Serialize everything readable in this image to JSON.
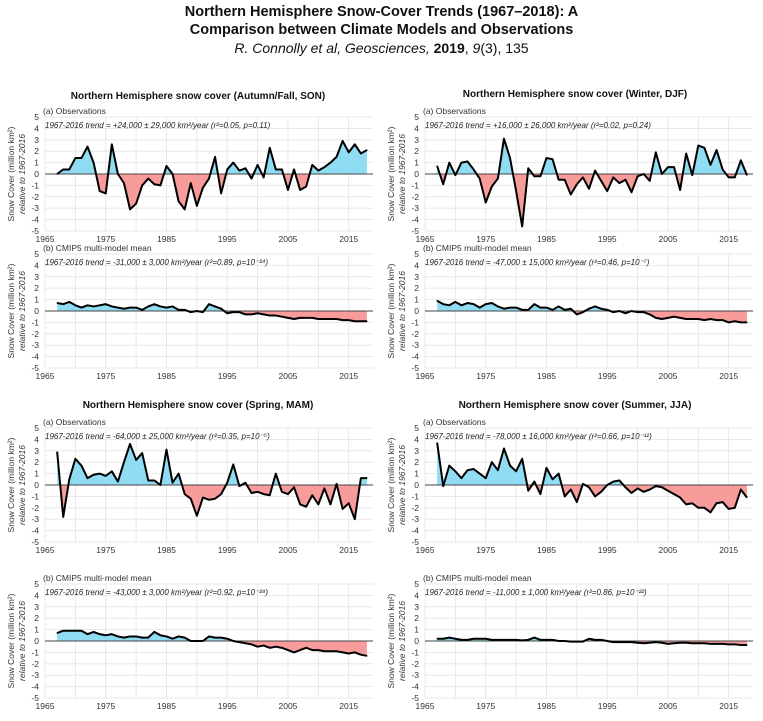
{
  "title": {
    "line1": "Northern Hemisphere Snow-Cover Trends (1967–2018): A",
    "line2": "Comparison between Climate Models and Observations",
    "cite_authors": "R. Connolly et al, Geosciences,",
    "cite_year": "2019",
    "cite_sep": ",",
    "cite_volume": "9",
    "cite_rest": "(3), 135"
  },
  "colors": {
    "positive": "#8fdcf3",
    "negative": "#f79b9b",
    "line": "#000000",
    "grid": "#e3e3e3"
  },
  "chart_data": [
    {
      "type": "area",
      "season": "Northern Hemisphere snow cover (Autumn/Fall, SON)",
      "panel": "(a) Observations",
      "trend": "1967-2016 trend = +24,000 ± 29,000 km²/year (r²=0.05, p=0.11)",
      "ylabel1": "Snow Cover (million km²)",
      "ylabel2": "relative to 1967-2016",
      "ylim": [
        -5,
        5
      ],
      "xlim": [
        1965,
        2019
      ],
      "xticks": [
        "1965",
        "1975",
        "1985",
        "1995",
        "2005",
        "2015"
      ],
      "yticks": [
        "5",
        "4",
        "3",
        "2",
        "1",
        "0",
        "-1",
        "-2",
        "-3",
        "-4",
        "-5"
      ],
      "x_start": 1967,
      "values": [
        0,
        0.4,
        0.4,
        1.4,
        1.4,
        2.4,
        1.0,
        -1.5,
        -1.7,
        2.6,
        0,
        -0.8,
        -3.1,
        -2.6,
        -1.0,
        -0.4,
        -0.9,
        -1.0,
        0.7,
        0,
        -2.4,
        -3.1,
        -0.8,
        -2.8,
        -1.2,
        -0.4,
        1.5,
        -1.7,
        0.4,
        1.0,
        0.3,
        0.5,
        -0.4,
        0.8,
        -0.3,
        2.3,
        0.4,
        0.4,
        -1.4,
        0.4,
        -1.4,
        -1.1,
        0.8,
        0.3,
        0.6,
        1.0,
        1.5,
        2.9,
        1.9,
        2.6,
        1.8,
        2.1
      ]
    },
    {
      "type": "area",
      "season": "",
      "panel": "(b) CMIP5 multi-model mean",
      "trend": "1967-2016 trend = -31,000 ± 3,000 km²/year (r²=0.89, p=10⁻²⁴)",
      "ylabel1": "Snow Cover (million km²)",
      "ylabel2": "relative to 1967-2016",
      "ylim": [
        -5,
        5
      ],
      "xlim": [
        1965,
        2019
      ],
      "xticks": [
        "1965",
        "1975",
        "1985",
        "1995",
        "2005",
        "2015"
      ],
      "yticks": [
        "5",
        "4",
        "3",
        "2",
        "1",
        "0",
        "-1",
        "-2",
        "-3",
        "-4",
        "-5"
      ],
      "x_start": 1967,
      "values": [
        0.7,
        0.6,
        0.8,
        0.5,
        0.3,
        0.5,
        0.4,
        0.5,
        0.6,
        0.4,
        0.3,
        0.2,
        0.3,
        0.3,
        0.1,
        0.4,
        0.6,
        0.4,
        0.3,
        0.4,
        0.1,
        0.1,
        -0.1,
        0,
        -0.1,
        0.6,
        0.4,
        0.2,
        -0.2,
        -0.1,
        -0.1,
        -0.3,
        -0.3,
        -0.2,
        -0.3,
        -0.4,
        -0.4,
        -0.5,
        -0.6,
        -0.7,
        -0.6,
        -0.6,
        -0.6,
        -0.7,
        -0.7,
        -0.7,
        -0.7,
        -0.8,
        -0.8,
        -0.9,
        -0.9,
        -0.9
      ]
    },
    {
      "type": "area",
      "season": "Northern Hemisphere snow cover (Winter, DJF)",
      "panel": "(a) Observations",
      "trend": "1967-2016 trend = +16,000 ± 26,000 km²/year (r²=0.02, p=0.24)",
      "ylabel1": "Snow Cover (million km²)",
      "ylabel2": "relative to 1967-2016",
      "ylim": [
        -5,
        5
      ],
      "xlim": [
        1965,
        2019
      ],
      "xticks": [
        "1965",
        "1975",
        "1985",
        "1995",
        "2005",
        "2015"
      ],
      "yticks": [
        "5",
        "4",
        "3",
        "2",
        "1",
        "0",
        "-1",
        "-2",
        "-3",
        "-4",
        "-5"
      ],
      "x_start": 1967,
      "values": [
        0.7,
        -0.9,
        1.0,
        -0.1,
        1.0,
        1.1,
        0.4,
        -0.4,
        -2.5,
        -1.1,
        -0.4,
        3.1,
        1.4,
        -1.5,
        -4.6,
        0.5,
        -0.2,
        -0.2,
        1.4,
        1.3,
        -0.5,
        -0.5,
        -1.8,
        -0.9,
        -0.3,
        -1.3,
        0.3,
        -0.6,
        -1.5,
        -0.3,
        -0.8,
        -0.5,
        -1.6,
        -0.2,
        0,
        -0.6,
        1.9,
        0,
        0.6,
        0.6,
        -1.4,
        1.8,
        -0.1,
        2.5,
        2.3,
        0.8,
        2.1,
        0.4,
        -0.3,
        -0.3,
        1.2,
        -0.1
      ]
    },
    {
      "type": "area",
      "season": "",
      "panel": "(b) CMIP5 multi-model mean",
      "trend": "1967-2016 trend = -47,000 ± 15,000 km²/year (r²=0.46, p=10⁻⁷)",
      "ylabel1": "Snow Cover (million km²)",
      "ylabel2": "relative to 1967-2016",
      "ylim": [
        -5,
        5
      ],
      "xlim": [
        1965,
        2019
      ],
      "xticks": [
        "1965",
        "1975",
        "1985",
        "1995",
        "2005",
        "2015"
      ],
      "yticks": [
        "5",
        "4",
        "3",
        "2",
        "1",
        "0",
        "-1",
        "-2",
        "-3",
        "-4",
        "-5"
      ],
      "x_start": 1967,
      "values": [
        0.9,
        0.6,
        0.5,
        0.8,
        0.5,
        0.7,
        0.6,
        0.3,
        0.6,
        0.7,
        0.4,
        0.2,
        0.3,
        0.3,
        0.1,
        0.1,
        0.6,
        0.3,
        0.3,
        0.1,
        0.4,
        0.1,
        0.2,
        -0.3,
        -0.1,
        0.2,
        0.4,
        0.2,
        0.1,
        -0.1,
        0,
        -0.2,
        0,
        -0.1,
        -0.1,
        -0.3,
        -0.6,
        -0.7,
        -0.6,
        -0.5,
        -0.6,
        -0.7,
        -0.7,
        -0.7,
        -0.8,
        -0.7,
        -0.8,
        -0.8,
        -1.0,
        -0.9,
        -1.0,
        -1.0
      ]
    },
    {
      "type": "area",
      "season": "Northern Hemisphere snow cover (Spring, MAM)",
      "panel": "(a) Observations",
      "trend": "1967-2016 trend = -64,000 ± 25,000 km²/year (r²=0.35, p=10⁻⁵)",
      "ylabel1": "Snow Cover (million km²)",
      "ylabel2": "relative to 1967-2016",
      "ylim": [
        -5,
        5
      ],
      "xlim": [
        1965,
        2019
      ],
      "xticks": [
        "1965",
        "1975",
        "1985",
        "1995",
        "2005",
        "2015"
      ],
      "yticks": [
        "5",
        "4",
        "3",
        "2",
        "1",
        "0",
        "-1",
        "-2",
        "-3",
        "-4",
        "-5"
      ],
      "x_start": 1967,
      "values": [
        2.9,
        -2.8,
        0.5,
        2.3,
        1.7,
        0.6,
        0.9,
        1.0,
        0.8,
        1.2,
        0.3,
        2.0,
        3.6,
        2.2,
        2.8,
        0.4,
        0.4,
        0,
        3.1,
        0.2,
        1.0,
        -0.8,
        -1.2,
        -2.7,
        -1.1,
        -1.3,
        -1.2,
        -0.8,
        0.2,
        1.8,
        -0.1,
        0.2,
        -0.7,
        -0.6,
        -0.8,
        -0.9,
        1.0,
        -0.6,
        -0.8,
        -0.2,
        -1.7,
        -1.9,
        -0.9,
        -1.7,
        -0.3,
        -1.7,
        0.1,
        -2.1,
        -1.6,
        -3.0,
        0.6,
        0.6
      ]
    },
    {
      "type": "area",
      "season": "",
      "panel": "(b) CMIP5 multi-model mean",
      "trend": "1967-2016 trend = -43,000 ± 3,000 km²/year (r²=0.92, p=10⁻²⁸)",
      "ylabel1": "Snow Cover (million km²)",
      "ylabel2": "relative to 1967-2016",
      "ylim": [
        -5,
        5
      ],
      "xlim": [
        1965,
        2019
      ],
      "xticks": [
        "1965",
        "1975",
        "1985",
        "1995",
        "2005",
        "2015"
      ],
      "yticks": [
        "5",
        "4",
        "3",
        "2",
        "1",
        "0",
        "-1",
        "-2",
        "-3",
        "-4",
        "-5"
      ],
      "x_start": 1967,
      "values": [
        0.7,
        0.9,
        0.9,
        0.9,
        0.9,
        0.6,
        0.8,
        0.6,
        0.5,
        0.6,
        0.4,
        0.3,
        0.4,
        0.4,
        0.3,
        0.3,
        0.8,
        0.5,
        0.4,
        0.2,
        0.4,
        0.3,
        0,
        0,
        0,
        0.4,
        0.3,
        0.3,
        0.2,
        0,
        -0.1,
        -0.2,
        -0.3,
        -0.5,
        -0.4,
        -0.6,
        -0.5,
        -0.6,
        -0.8,
        -1.0,
        -0.8,
        -0.6,
        -0.8,
        -0.8,
        -0.9,
        -0.9,
        -0.9,
        -1.0,
        -1.1,
        -1.0,
        -1.2,
        -1.3
      ]
    },
    {
      "type": "area",
      "season": "Northern Hemisphere snow cover (Summer, JJA)",
      "panel": "(a) Observations",
      "trend": "1967-2016 trend = -78,000 ± 16,000 km²/year (r²=0.66, p=10⁻¹²)",
      "ylabel1": "Snow Cover (million km²)",
      "ylabel2": "relative to 1967-2016",
      "ylim": [
        -5,
        5
      ],
      "xlim": [
        1965,
        2019
      ],
      "xticks": [
        "1965",
        "1975",
        "1985",
        "1995",
        "2005",
        "2015"
      ],
      "yticks": [
        "5",
        "4",
        "3",
        "2",
        "1",
        "0",
        "-1",
        "-2",
        "-3",
        "-4",
        "-5"
      ],
      "x_start": 1967,
      "values": [
        3.7,
        -0.1,
        1.7,
        1.2,
        0.6,
        1.3,
        1.4,
        1.0,
        0.6,
        2.0,
        1.3,
        3.2,
        1.7,
        1.2,
        2.3,
        -0.5,
        0.3,
        -0.8,
        1.5,
        0.5,
        1.0,
        -1.0,
        -0.4,
        -1.5,
        0.1,
        -0.2,
        -1.0,
        -0.6,
        0,
        0.3,
        0.4,
        -0.2,
        -0.7,
        -0.3,
        -0.6,
        -0.4,
        -0.1,
        -0.2,
        -0.5,
        -0.8,
        -1.1,
        -1.7,
        -1.6,
        -2.0,
        -2.0,
        -2.4,
        -1.6,
        -1.5,
        -2.1,
        -2.0,
        -0.4,
        -1.1
      ]
    },
    {
      "type": "area",
      "season": "",
      "panel": "(b) CMIP5 multi-model mean",
      "trend": "1967-2016 trend = -11,000 ± 1,000 km²/year (r²=0.86, p=10⁻²²)",
      "ylabel1": "Snow Cover (million km²)",
      "ylabel2": "relative to 1967-2016",
      "ylim": [
        -5,
        5
      ],
      "xlim": [
        1965,
        2019
      ],
      "xticks": [
        "1965",
        "1975",
        "1985",
        "1995",
        "2005",
        "2015"
      ],
      "yticks": [
        "5",
        "4",
        "3",
        "2",
        "1",
        "0",
        "-1",
        "-2",
        "-3",
        "-4",
        "-5"
      ],
      "x_start": 1967,
      "values": [
        0.2,
        0.2,
        0.3,
        0.2,
        0.1,
        0.1,
        0.2,
        0.2,
        0.2,
        0.1,
        0.1,
        0.1,
        0.1,
        0.1,
        0.05,
        0.1,
        0.3,
        0.1,
        0.1,
        0.1,
        0,
        0,
        -0.05,
        -0.05,
        -0.05,
        0.2,
        0.1,
        0.1,
        0,
        -0.1,
        -0.1,
        -0.1,
        -0.1,
        -0.15,
        -0.2,
        -0.15,
        -0.1,
        -0.15,
        -0.25,
        -0.2,
        -0.15,
        -0.15,
        -0.2,
        -0.2,
        -0.2,
        -0.25,
        -0.25,
        -0.25,
        -0.3,
        -0.3,
        -0.35,
        -0.35
      ]
    }
  ]
}
